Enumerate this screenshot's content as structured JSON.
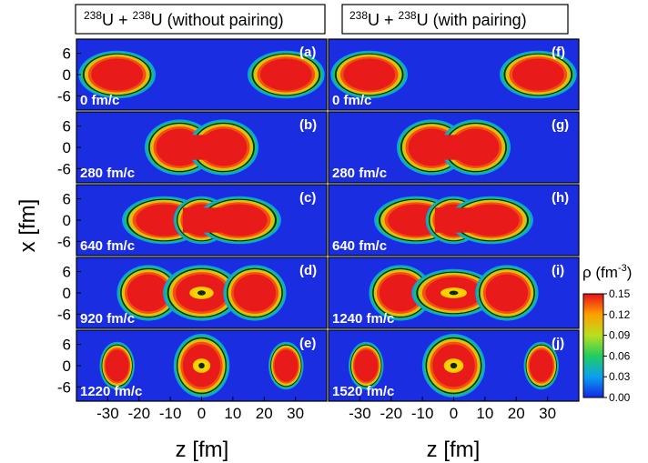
{
  "columns": [
    {
      "id": "left",
      "title_mass": "238",
      "title_mid": "U + ",
      "title_mass2": "238",
      "title_tail": "U (without pairing)"
    },
    {
      "id": "right",
      "title_mass": "238",
      "title_mid": "U + ",
      "title_mass2": "238",
      "title_tail": "U (with pairing)"
    }
  ],
  "y_axis_label": "x [fm]",
  "x_axis_label": "z [fm]",
  "colorbar": {
    "label_prefix": "ρ (fm",
    "label_exp": "-3",
    "label_suffix": ")",
    "ticks": [
      "0.15",
      "0.12",
      "0.09",
      "0.06",
      "0.03",
      "0.00"
    ]
  },
  "y_ticks": [
    "6",
    "0",
    "-6"
  ],
  "x_ticks": [
    "-30",
    "-20",
    "-10",
    "0",
    "10",
    "20",
    "30"
  ],
  "chart_data": {
    "type": "heatmap",
    "x_label": "z [fm]",
    "y_label": "x [fm]",
    "x_range": [
      -40,
      40
    ],
    "y_range": [
      -10,
      10
    ],
    "x_ticks": [
      -30,
      -20,
      -10,
      0,
      10,
      20,
      30
    ],
    "y_ticks": [
      6,
      0,
      -6
    ],
    "colorbar": {
      "label": "ρ (fm-3)",
      "min": 0.0,
      "max": 0.15,
      "colormap": "blue-cyan-green-yellow-orange-red"
    },
    "panels": [
      {
        "letter": "(a)",
        "time": "0 fm/c",
        "column": "left",
        "row": 0,
        "blobs": [
          {
            "z": -27,
            "a": 11,
            "b": 6,
            "peak": 0.14
          },
          {
            "z": 27,
            "a": 11,
            "b": 6,
            "peak": 0.14
          }
        ]
      },
      {
        "letter": "(b)",
        "time": "280 fm/c",
        "column": "left",
        "row": 1,
        "blobs": [
          {
            "z": -7,
            "a": 10,
            "b": 7,
            "peak": 0.14
          },
          {
            "z": 7,
            "a": 10,
            "b": 7,
            "peak": 0.14
          }
        ]
      },
      {
        "letter": "(c)",
        "time": "640 fm/c",
        "column": "left",
        "row": 2,
        "blobs": [
          {
            "z": -12,
            "a": 12,
            "b": 6,
            "peak": 0.13
          },
          {
            "z": 0,
            "a": 8,
            "b": 6,
            "peak": 0.12
          },
          {
            "z": 12,
            "a": 12,
            "b": 6,
            "peak": 0.13
          }
        ]
      },
      {
        "letter": "(d)",
        "time": "920 fm/c",
        "column": "left",
        "row": 3,
        "blobs": [
          {
            "z": -17,
            "a": 9,
            "b": 7,
            "peak": 0.14
          },
          {
            "z": 0,
            "a": 11,
            "b": 7,
            "peak": 0.12
          },
          {
            "z": 17,
            "a": 9,
            "b": 7,
            "peak": 0.14
          }
        ]
      },
      {
        "letter": "(e)",
        "time": "1220 fm/c",
        "column": "left",
        "row": 4,
        "blobs": [
          {
            "z": -27,
            "a": 5,
            "b": 6,
            "peak": 0.14
          },
          {
            "z": 0,
            "a": 8,
            "b": 8,
            "peak": 0.13
          },
          {
            "z": 27,
            "a": 5,
            "b": 6,
            "peak": 0.14
          }
        ]
      },
      {
        "letter": "(f)",
        "time": "0 fm/c",
        "column": "right",
        "row": 0,
        "blobs": [
          {
            "z": -27,
            "a": 11,
            "b": 6,
            "peak": 0.14
          },
          {
            "z": 27,
            "a": 11,
            "b": 6,
            "peak": 0.14
          }
        ]
      },
      {
        "letter": "(g)",
        "time": "280 fm/c",
        "column": "right",
        "row": 1,
        "blobs": [
          {
            "z": -7,
            "a": 10,
            "b": 7,
            "peak": 0.14
          },
          {
            "z": 7,
            "a": 10,
            "b": 7,
            "peak": 0.14
          }
        ]
      },
      {
        "letter": "(h)",
        "time": "640 fm/c",
        "column": "right",
        "row": 2,
        "blobs": [
          {
            "z": -12,
            "a": 12,
            "b": 6,
            "peak": 0.13
          },
          {
            "z": 0,
            "a": 8,
            "b": 6,
            "peak": 0.12
          },
          {
            "z": 12,
            "a": 12,
            "b": 6,
            "peak": 0.13
          }
        ]
      },
      {
        "letter": "(i)",
        "time": "1240 fm/c",
        "column": "right",
        "row": 3,
        "blobs": [
          {
            "z": -17,
            "a": 9,
            "b": 7,
            "peak": 0.14
          },
          {
            "z": 0,
            "a": 12,
            "b": 6,
            "peak": 0.12
          },
          {
            "z": 17,
            "a": 9,
            "b": 7,
            "peak": 0.14
          }
        ]
      },
      {
        "letter": "(j)",
        "time": "1520 fm/c",
        "column": "right",
        "row": 4,
        "blobs": [
          {
            "z": -28,
            "a": 5,
            "b": 6,
            "peak": 0.14
          },
          {
            "z": 0,
            "a": 9,
            "b": 8,
            "peak": 0.13
          },
          {
            "z": 28,
            "a": 5,
            "b": 6,
            "peak": 0.14
          }
        ]
      }
    ]
  }
}
